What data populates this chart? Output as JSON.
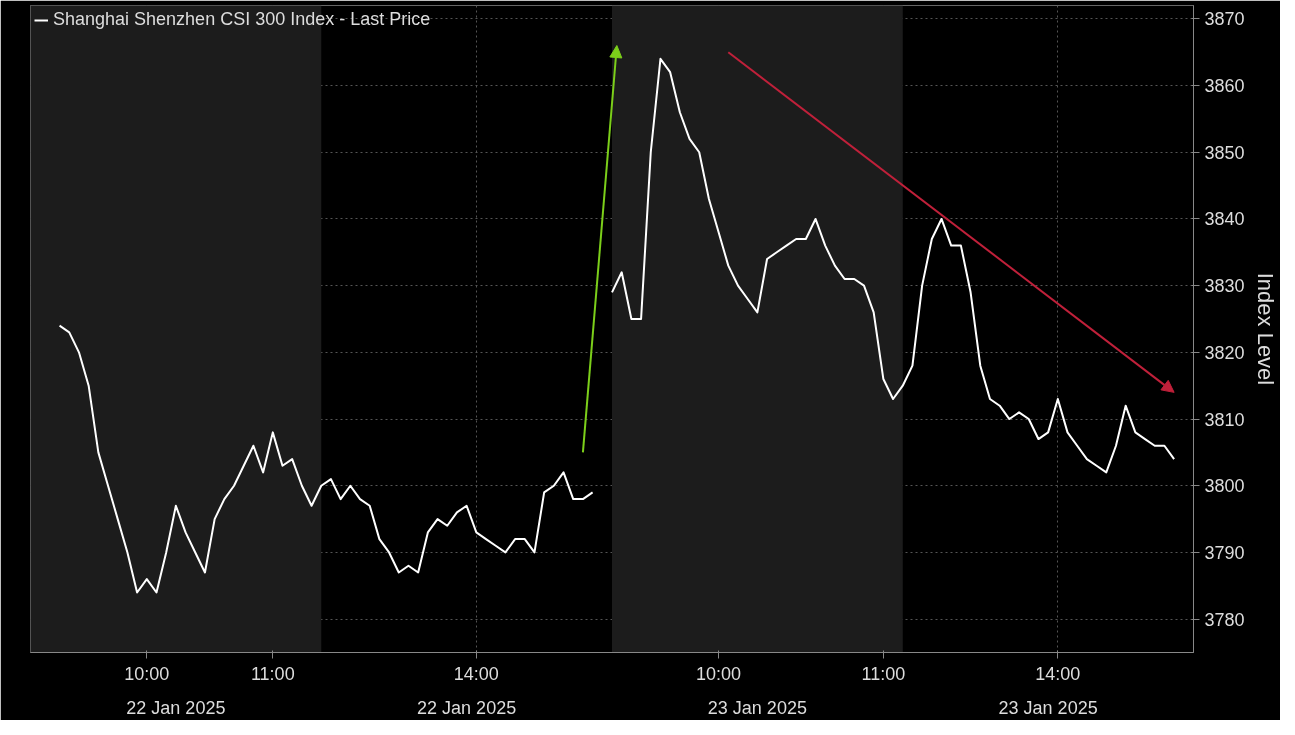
{
  "chart_data": {
    "type": "line",
    "legend": "top left",
    "grid": true,
    "ylabel": "Index Level",
    "ylim": [
      3775,
      3872
    ],
    "categories": [
      null,
      null,
      null,
      null,
      null,
      null,
      null,
      null,
      null,
      "10:00",
      null,
      null,
      null,
      null,
      null,
      null,
      null,
      null,
      null,
      null,
      null,
      null,
      "11:00",
      null,
      null,
      null,
      null,
      null,
      null,
      null,
      null,
      null,
      null,
      null,
      null,
      null,
      null,
      null,
      null,
      null,
      null,
      null,
      null,
      "14:00",
      null,
      null,
      null,
      null,
      null,
      null,
      null,
      null,
      null,
      null,
      null,
      null,
      null,
      null,
      null,
      null,
      null,
      null,
      null,
      null,
      null,
      null,
      null,
      null,
      "10:00",
      null,
      null,
      null,
      null,
      null,
      null,
      null,
      null,
      null,
      null,
      null,
      null,
      null,
      null,
      null,
      null,
      "11:00",
      null,
      null,
      null,
      null,
      null,
      null,
      null,
      null,
      null,
      null,
      null,
      null,
      null,
      null,
      null,
      null,
      null,
      "14:00",
      null,
      null,
      null,
      null,
      null,
      null,
      null,
      null,
      null,
      null,
      null,
      null
    ],
    "yticks": [
      3780,
      3790,
      3800,
      3810,
      3820,
      3830,
      3840,
      3850,
      3860,
      3870
    ],
    "annotations": [
      "22 Jan 2025",
      "22 Jan 2025",
      "23 Jan 2025",
      "23 Jan 2025"
    ],
    "series": [
      {
        "name": "Shanghai Shenzhen CSI 300 Index - Last Price",
        "color": "#ffffff",
        "values": [
          3824,
          3823,
          3820,
          3815,
          3805,
          3800,
          3795,
          3790,
          3784,
          3786,
          3784,
          3790,
          3797,
          3793,
          3790,
          3787,
          3795,
          3798,
          3800,
          3803,
          3806,
          3802,
          3808,
          3803,
          3804,
          3800,
          3797,
          3800,
          3801,
          3798,
          3800,
          3798,
          3797,
          3792,
          3790,
          3787,
          3788,
          3787,
          3793,
          3795,
          3794,
          3796,
          3797,
          3793,
          3792,
          3791,
          3790,
          3792,
          3792,
          3790,
          3799,
          3800,
          3802,
          3798,
          3798,
          3799,
          null,
          3829,
          3832,
          3825,
          3825,
          3850,
          3864,
          3862,
          3856,
          3852,
          3850,
          3843,
          3838,
          3833,
          3830,
          3828,
          3826,
          3834,
          3835,
          3836,
          3837,
          3837,
          3840,
          3836,
          3833,
          3831,
          3831,
          3830,
          3826,
          3816,
          3813,
          3815,
          3818,
          3830,
          3837,
          3840,
          3836,
          3836,
          3829,
          3818,
          3813,
          3812,
          3810,
          3811,
          3810,
          3807,
          3808,
          3813,
          3808,
          3806,
          3804,
          3803,
          3802,
          3806,
          3812,
          3808,
          3807,
          3806,
          3806,
          3804
        ]
      }
    ]
  }
}
